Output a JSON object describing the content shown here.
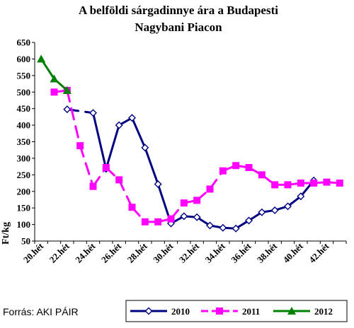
{
  "chart_data": {
    "type": "line",
    "title_lines": [
      "A belföldi sárgadinnye ára a Budapesti",
      "Nagybani Piacon"
    ],
    "ylabel": "Ft/kg",
    "ylim": [
      50,
      650
    ],
    "yticks": [
      50,
      100,
      150,
      200,
      250,
      300,
      350,
      400,
      450,
      500,
      550,
      600,
      650
    ],
    "x": [
      "20.hét",
      "21.hét",
      "22.hét",
      "23.hét",
      "24.hét",
      "25.hét",
      "26.hét",
      "27.hét",
      "28.hét",
      "29.hét",
      "30.hét",
      "31.hét",
      "32.hét",
      "33.hét",
      "34.hét",
      "35.hét",
      "36.hét",
      "37.hét",
      "38.hét",
      "39.hét",
      "40.hét",
      "41.hét",
      "42.hét",
      "43.hét"
    ],
    "xtick_labels": [
      "20.hét",
      "",
      "22.hét",
      "",
      "24.hét",
      "",
      "26.hét",
      "",
      "28.hét",
      "",
      "30.hét",
      "",
      "32.hét",
      "",
      "34.hét",
      "",
      "36.hét",
      "",
      "38.hét",
      "",
      "40.hét",
      "",
      "42.hét",
      ""
    ],
    "grid": false,
    "series": [
      {
        "name": "2010",
        "color": "#000080",
        "marker": "diamond",
        "values": [
          null,
          null,
          448,
          null,
          437,
          268,
          400,
          422,
          332,
          222,
          103,
          125,
          122,
          97,
          90,
          88,
          112,
          137,
          143,
          155,
          185,
          233,
          null,
          null
        ],
        "dashed_segments": [
          [
            2,
            4
          ]
        ]
      },
      {
        "name": "2011",
        "color": "#ff00ff",
        "marker": "square",
        "values": [
          null,
          500,
          505,
          338,
          215,
          272,
          235,
          152,
          108,
          108,
          117,
          165,
          173,
          207,
          262,
          278,
          272,
          250,
          220,
          220,
          225,
          225,
          228,
          225
        ],
        "dashed_segments": "all"
      },
      {
        "name": "2012",
        "color": "#008000",
        "marker": "triangle",
        "values": [
          600,
          540,
          505,
          null,
          null,
          null,
          null,
          null,
          null,
          null,
          null,
          null,
          null,
          null,
          null,
          null,
          null,
          null,
          null,
          null,
          null,
          null,
          null,
          null
        ],
        "dashed_segments": []
      }
    ],
    "legend_position": "bottom-right",
    "source_text": "Forrás: AKI PÁIR"
  }
}
